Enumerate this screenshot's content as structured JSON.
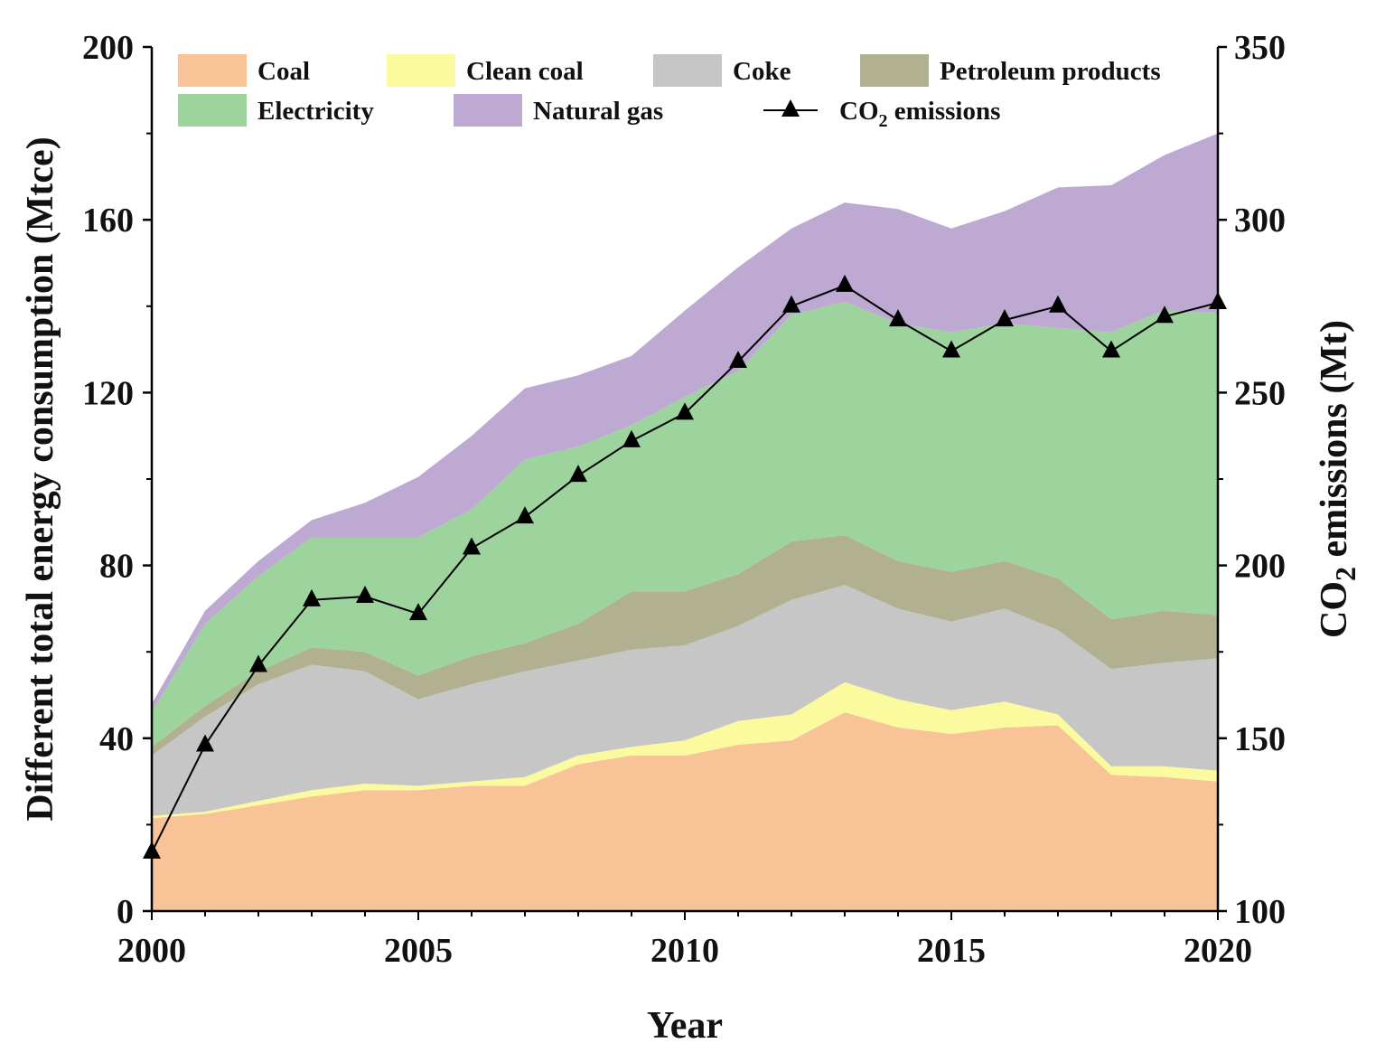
{
  "chart_data": {
    "type": "area",
    "stacked": true,
    "x": [
      2000,
      2001,
      2002,
      2003,
      2004,
      2005,
      2006,
      2007,
      2008,
      2009,
      2010,
      2011,
      2012,
      2013,
      2014,
      2015,
      2016,
      2017,
      2018,
      2019,
      2020
    ],
    "xlabel": "Year",
    "ylabel": "Different total energy consumption (Mtce)",
    "ylim": [
      0,
      200
    ],
    "yticks": [
      "0",
      "40",
      "80",
      "120",
      "160",
      "200"
    ],
    "xticks": [
      "2000",
      "2005",
      "2010",
      "2015",
      "2020"
    ],
    "y2label": "CO₂ emissions (Mt)",
    "y2label_main": "CO",
    "y2label_sub": "2",
    "y2label_rest": " emissions (Mt)",
    "y2lim": [
      100,
      350
    ],
    "y2ticks": [
      "100",
      "150",
      "200",
      "250",
      "300",
      "350"
    ],
    "series": [
      {
        "name": "Coal",
        "color": "#f8c497",
        "values": [
          21.5,
          22.5,
          24.5,
          26.5,
          28,
          28,
          29,
          29,
          34,
          36,
          36,
          38.5,
          39.5,
          46,
          42.5,
          41,
          42.5,
          43,
          31.5,
          31,
          30
        ]
      },
      {
        "name": "Clean coal",
        "color": "#fcfa9e",
        "values": [
          0.5,
          0.5,
          1,
          1.5,
          1.5,
          1,
          1,
          2,
          2,
          2,
          3.5,
          5.5,
          6,
          7,
          6.5,
          5.5,
          6,
          2.5,
          2,
          2.5,
          2.5
        ]
      },
      {
        "name": "Coke",
        "color": "#c6c6c6",
        "values": [
          14,
          22,
          27,
          29,
          26,
          20,
          22.5,
          24.5,
          22,
          22.5,
          22,
          22,
          26.5,
          22.5,
          21,
          20.5,
          21.5,
          19.5,
          22.5,
          24,
          26
        ]
      },
      {
        "name": "Petroleum products",
        "color": "#b1b090",
        "values": [
          2,
          2.5,
          3,
          4,
          4.5,
          5.5,
          6.5,
          6.5,
          8.5,
          13.5,
          12.5,
          12,
          13.5,
          11.5,
          11,
          11.5,
          11,
          12,
          11.5,
          12,
          10
        ]
      },
      {
        "name": "Electricity",
        "color": "#9dd49d",
        "values": [
          8,
          19,
          22,
          25.5,
          26.5,
          32,
          34,
          42.5,
          41,
          38.5,
          45,
          47,
          52.5,
          54,
          55,
          55.5,
          55,
          58,
          66.5,
          69.5,
          70
        ]
      },
      {
        "name": "Natural gas",
        "color": "#bea9d2",
        "values": [
          2,
          3,
          3.5,
          4,
          8,
          14,
          17,
          16.5,
          16.5,
          16,
          20,
          24,
          20,
          23,
          26.5,
          24,
          26,
          32.5,
          34,
          36,
          41.5
        ]
      }
    ],
    "co2": {
      "name": "CO₂ emissions",
      "axis": "right",
      "values": [
        117,
        148,
        171,
        190,
        191,
        186,
        205,
        214,
        226,
        236,
        244,
        259,
        275,
        281,
        271,
        262,
        271,
        275,
        262,
        272,
        276
      ]
    },
    "legend": {
      "placement": "top",
      "items": [
        {
          "label": "Coal",
          "color": "#f8c497"
        },
        {
          "label": "Clean coal",
          "color": "#fcfa9e"
        },
        {
          "label": "Coke",
          "color": "#c6c6c6"
        },
        {
          "label": "Petroleum products",
          "color": "#b1b090"
        },
        {
          "label": "Electricity",
          "color": "#9dd49d"
        },
        {
          "label": "Natural gas",
          "color": "#bea9d2"
        },
        {
          "label": "CO",
          "sub": "2",
          "rest": " emissions",
          "marker": "triangle"
        }
      ]
    }
  }
}
